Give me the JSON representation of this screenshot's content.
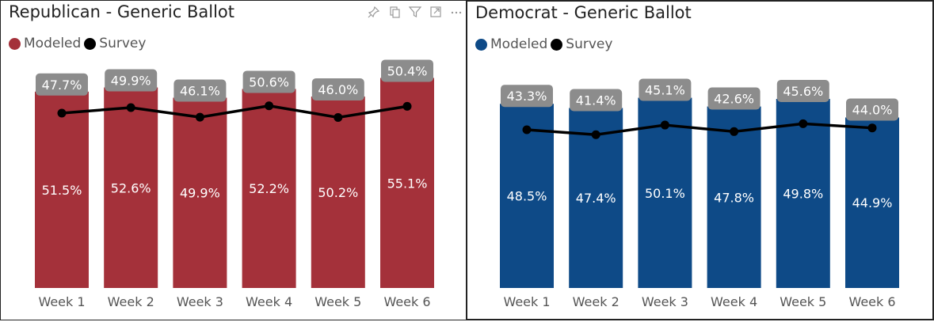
{
  "panels": [
    {
      "title": "Republican - Generic Ballot",
      "legend": [
        {
          "label": "Modeled",
          "color": "#a4313a"
        },
        {
          "label": "Survey",
          "color": "#000000"
        }
      ],
      "toolbar_icons": [
        "pin-icon",
        "copy-icon",
        "filter-icon",
        "focus-mode-icon",
        "more-options-icon"
      ]
    },
    {
      "title": "Democrat - Generic Ballot",
      "legend": [
        {
          "label": "Modeled",
          "color": "#0e4a87"
        },
        {
          "label": "Survey",
          "color": "#000000"
        }
      ],
      "toolbar_icons": []
    }
  ],
  "chart_data": [
    {
      "type": "bar",
      "title": "Republican - Generic Ballot",
      "categories": [
        "Week 1",
        "Week 2",
        "Week 3",
        "Week 4",
        "Week 5",
        "Week 6"
      ],
      "series": [
        {
          "name": "Modeled",
          "type": "bar",
          "color": "#a4313a",
          "values": [
            51.5,
            52.6,
            49.9,
            52.2,
            50.2,
            55.1
          ],
          "labels": [
            "51.5%",
            "52.6%",
            "49.9%",
            "52.2%",
            "50.2%",
            "55.1%"
          ]
        },
        {
          "name": "Survey",
          "type": "line",
          "color": "#000000",
          "values": [
            47.7,
            49.9,
            46.1,
            50.6,
            46.0,
            50.4
          ],
          "labels": [
            "47.7%",
            "49.9%",
            "46.1%",
            "50.6%",
            "46.0%",
            "50.4%"
          ]
        }
      ],
      "ylim": [
        0,
        60
      ]
    },
    {
      "type": "bar",
      "title": "Democrat - Generic Ballot",
      "categories": [
        "Week 1",
        "Week 2",
        "Week 3",
        "Week 4",
        "Week 5",
        "Week 6"
      ],
      "series": [
        {
          "name": "Modeled",
          "type": "bar",
          "color": "#0e4a87",
          "values": [
            48.5,
            47.4,
            50.1,
            47.8,
            49.8,
            44.9
          ],
          "labels": [
            "48.5%",
            "47.4%",
            "50.1%",
            "47.8%",
            "49.8%",
            "44.9%"
          ]
        },
        {
          "name": "Survey",
          "type": "line",
          "color": "#000000",
          "values": [
            43.3,
            41.4,
            45.1,
            42.6,
            45.6,
            44.0
          ],
          "labels": [
            "43.3%",
            "41.4%",
            "45.1%",
            "42.6%",
            "45.6%",
            "44.0%"
          ]
        }
      ],
      "ylim": [
        0,
        60
      ]
    }
  ]
}
